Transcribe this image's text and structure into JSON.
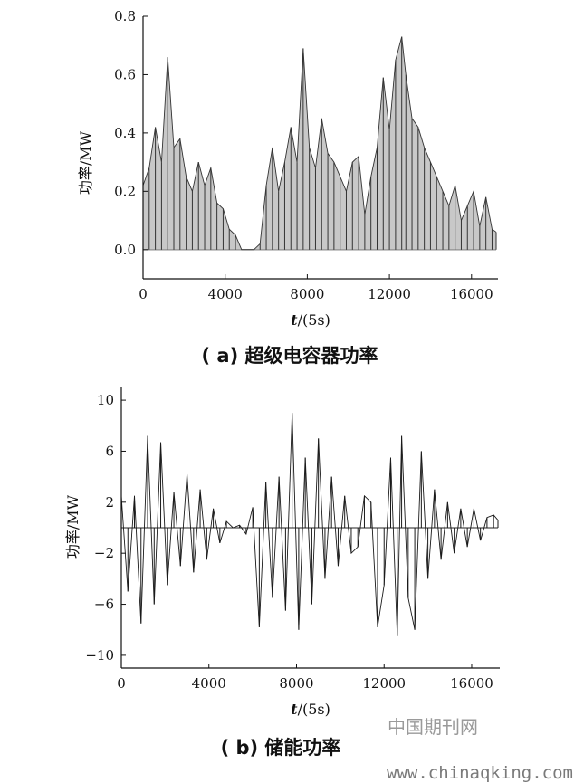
{
  "chart_data": [
    {
      "type": "area",
      "title": "",
      "caption": "( a)  超级电容器功率",
      "ylabel": "功率/MW",
      "xlabel_italic": "t",
      "xlabel_rest": "/(5s)",
      "xlim": [
        0,
        17200
      ],
      "ylim": [
        -0.1,
        0.8
      ],
      "xticks": [
        0,
        4000,
        8000,
        12000,
        16000
      ],
      "yticks": [
        0.0,
        0.2,
        0.4,
        0.6,
        0.8
      ],
      "ytick_labels": [
        "0.0",
        "0.2",
        "0.4",
        "0.6",
        "0.8"
      ],
      "fill_color": "#c8c8c8",
      "line_color": "#333333",
      "series": [
        {
          "x": [
            0,
            300,
            600,
            900,
            1200,
            1500,
            1800,
            2100,
            2400,
            2700,
            3000,
            3300,
            3600,
            3900,
            4200,
            4500,
            4800,
            5100,
            5400,
            5700,
            6000,
            6300,
            6600,
            6900,
            7200,
            7500,
            7800,
            8100,
            8400,
            8700,
            9000,
            9300,
            9600,
            9900,
            10200,
            10500,
            10800,
            11100,
            11400,
            11700,
            12000,
            12300,
            12600,
            12800,
            13100,
            13400,
            13700,
            14000,
            14300,
            14600,
            14900,
            15200,
            15500,
            15800,
            16100,
            16400,
            16700,
            17000,
            17200
          ],
          "values": [
            0.22,
            0.28,
            0.42,
            0.3,
            0.66,
            0.35,
            0.38,
            0.25,
            0.2,
            0.3,
            0.22,
            0.28,
            0.16,
            0.14,
            0.07,
            0.05,
            0.0,
            0.0,
            0.0,
            0.02,
            0.22,
            0.35,
            0.2,
            0.3,
            0.42,
            0.3,
            0.69,
            0.35,
            0.28,
            0.45,
            0.33,
            0.3,
            0.25,
            0.2,
            0.3,
            0.32,
            0.12,
            0.25,
            0.35,
            0.59,
            0.41,
            0.65,
            0.73,
            0.6,
            0.45,
            0.42,
            0.35,
            0.3,
            0.25,
            0.2,
            0.15,
            0.22,
            0.1,
            0.15,
            0.2,
            0.08,
            0.18,
            0.07,
            0.06
          ]
        }
      ]
    },
    {
      "type": "line",
      "title": "",
      "caption": "( b) 储能功率",
      "ylabel": "功率/MW",
      "xlabel_italic": "t",
      "xlabel_rest": "/(5s)",
      "xlim": [
        0,
        17200
      ],
      "ylim": [
        -11,
        11
      ],
      "xticks": [
        0,
        4000,
        8000,
        12000,
        16000
      ],
      "yticks": [
        10,
        6,
        2,
        -2,
        -6,
        -10
      ],
      "ytick_labels": [
        "10",
        "6",
        "2",
        "−2",
        "−6",
        "−10"
      ],
      "line_color": "#1a1a1a",
      "series": [
        {
          "x": [
            0,
            300,
            600,
            900,
            1200,
            1500,
            1800,
            2100,
            2400,
            2700,
            3000,
            3300,
            3600,
            3900,
            4200,
            4500,
            4800,
            5100,
            5400,
            5700,
            6000,
            6300,
            6600,
            6900,
            7200,
            7500,
            7800,
            8100,
            8400,
            8700,
            9000,
            9300,
            9600,
            9900,
            10200,
            10500,
            10800,
            11100,
            11400,
            11700,
            12000,
            12300,
            12600,
            12800,
            13100,
            13400,
            13700,
            14000,
            14300,
            14600,
            14900,
            15200,
            15500,
            15800,
            16100,
            16400,
            16700,
            17000,
            17200
          ],
          "values": [
            2.5,
            -5,
            2.5,
            -7.5,
            7.2,
            -6,
            6.7,
            -4.5,
            2.8,
            -3,
            4.2,
            -3.5,
            3.0,
            -2.5,
            1.5,
            -1.2,
            0.5,
            0.0,
            0.2,
            -0.5,
            1.6,
            -7.8,
            3.6,
            -5.5,
            4.0,
            -6.5,
            9.0,
            -8.0,
            5.5,
            -6.0,
            7.0,
            -4.0,
            4.0,
            -3.0,
            2.5,
            -2.0,
            -1.5,
            2.5,
            2.0,
            -7.8,
            -4.5,
            5.5,
            -8.5,
            7.2,
            -5.5,
            -8.0,
            6.0,
            -4.0,
            3.0,
            -2.5,
            2.0,
            -2.0,
            1.5,
            -1.5,
            1.5,
            -1.0,
            0.8,
            1.0,
            0.6
          ]
        }
      ]
    }
  ],
  "watermark": {
    "chinese": "中国期刊网",
    "url": "www.chinaqking.com"
  }
}
